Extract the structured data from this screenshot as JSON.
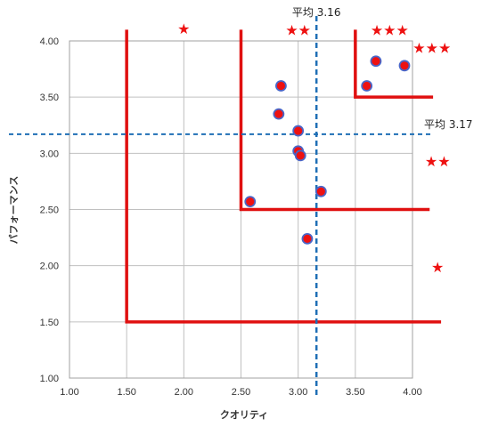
{
  "chart_data": {
    "type": "scatter",
    "xlabel": "クオリティ",
    "ylabel": "パフォーマンス",
    "xlim": [
      1.0,
      4.0
    ],
    "ylim": [
      1.0,
      4.0
    ],
    "x_ticks": [
      "1.00",
      "1.50",
      "2.00",
      "2.50",
      "3.00",
      "3.50",
      "4.00"
    ],
    "y_ticks": [
      "1.00",
      "1.50",
      "2.00",
      "2.50",
      "3.00",
      "3.50",
      "4.00"
    ],
    "grid": true,
    "points": [
      {
        "x": 2.58,
        "y": 2.57
      },
      {
        "x": 2.83,
        "y": 3.35
      },
      {
        "x": 2.85,
        "y": 3.6
      },
      {
        "x": 3.0,
        "y": 3.2
      },
      {
        "x": 3.0,
        "y": 3.02
      },
      {
        "x": 3.02,
        "y": 2.98
      },
      {
        "x": 3.08,
        "y": 2.24
      },
      {
        "x": 3.2,
        "y": 2.66
      },
      {
        "x": 3.6,
        "y": 3.6
      },
      {
        "x": 3.68,
        "y": 3.82
      },
      {
        "x": 3.93,
        "y": 3.78
      }
    ],
    "mean_x": {
      "value": 3.16,
      "label": "平均 3.16"
    },
    "mean_y": {
      "value": 3.17,
      "label": "平均 3.17"
    },
    "tier_lines": [
      {
        "corner_x": 1.5,
        "corner_y": 1.5,
        "x_end": 4.25,
        "y_top": 4.1
      },
      {
        "corner_x": 2.5,
        "corner_y": 2.5,
        "x_end": 4.15,
        "y_top": 4.1
      },
      {
        "corner_x": 3.5,
        "corner_y": 3.5,
        "x_end": 4.18,
        "y_top": 4.1
      }
    ],
    "star_labels": [
      {
        "text": "★",
        "x": 2.0,
        "y": 4.11
      },
      {
        "text": "★★",
        "x": 3.0,
        "y": 4.1
      },
      {
        "text": "★★★",
        "x": 3.8,
        "y": 4.1
      },
      {
        "text": "★★★",
        "x": 4.17,
        "y": 3.94
      },
      {
        "text": "★★",
        "x": 4.22,
        "y": 2.93
      },
      {
        "text": "★",
        "x": 4.22,
        "y": 1.99
      }
    ],
    "colors": {
      "point_fill": "#ee1111",
      "point_stroke": "#4a66c8",
      "tier_line": "#e01010",
      "mean_line": "#1f6fb5",
      "grid": "#c0c0c0",
      "star": "#ee1111"
    }
  }
}
